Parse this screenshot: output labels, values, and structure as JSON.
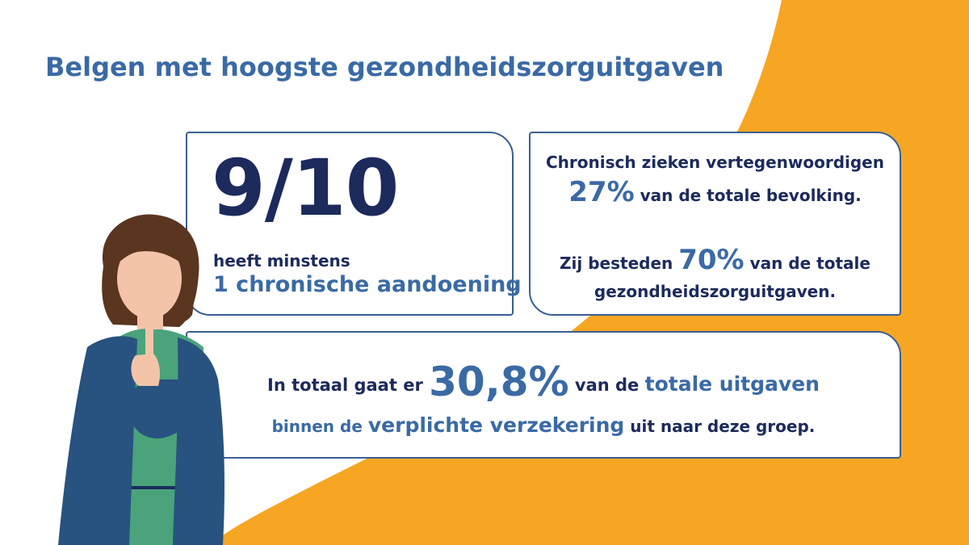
{
  "title": "Belgen met hoogste gezondheidszorguitgaven",
  "colors": {
    "accent_blue": "#3a6aa5",
    "dark_navy": "#1c2a5c",
    "orange": "#f6a623"
  },
  "card1": {
    "fraction": "9/10",
    "line1": "heeft minstens",
    "line2": "1 chronische aandoening"
  },
  "card2": {
    "line1": "Chronisch zieken vertegenwoordigen",
    "pct1": "27%",
    "line1_rest": " van de totale bevolking.",
    "line2_pre": "Zij besteden ",
    "pct2": "70%",
    "line2_post": " van de totale",
    "line2_rest": "gezondheidszorguitgaven."
  },
  "card3": {
    "pre": "In totaal gaat er ",
    "pct": "30,8%",
    "mid": " van de ",
    "hl1": "totale uitgaven",
    "l2_pre": "binnen de ",
    "hl2": "verplichte verzekering",
    "l2_post": " uit naar deze groep."
  },
  "illustration": "woman-thinking-icon"
}
